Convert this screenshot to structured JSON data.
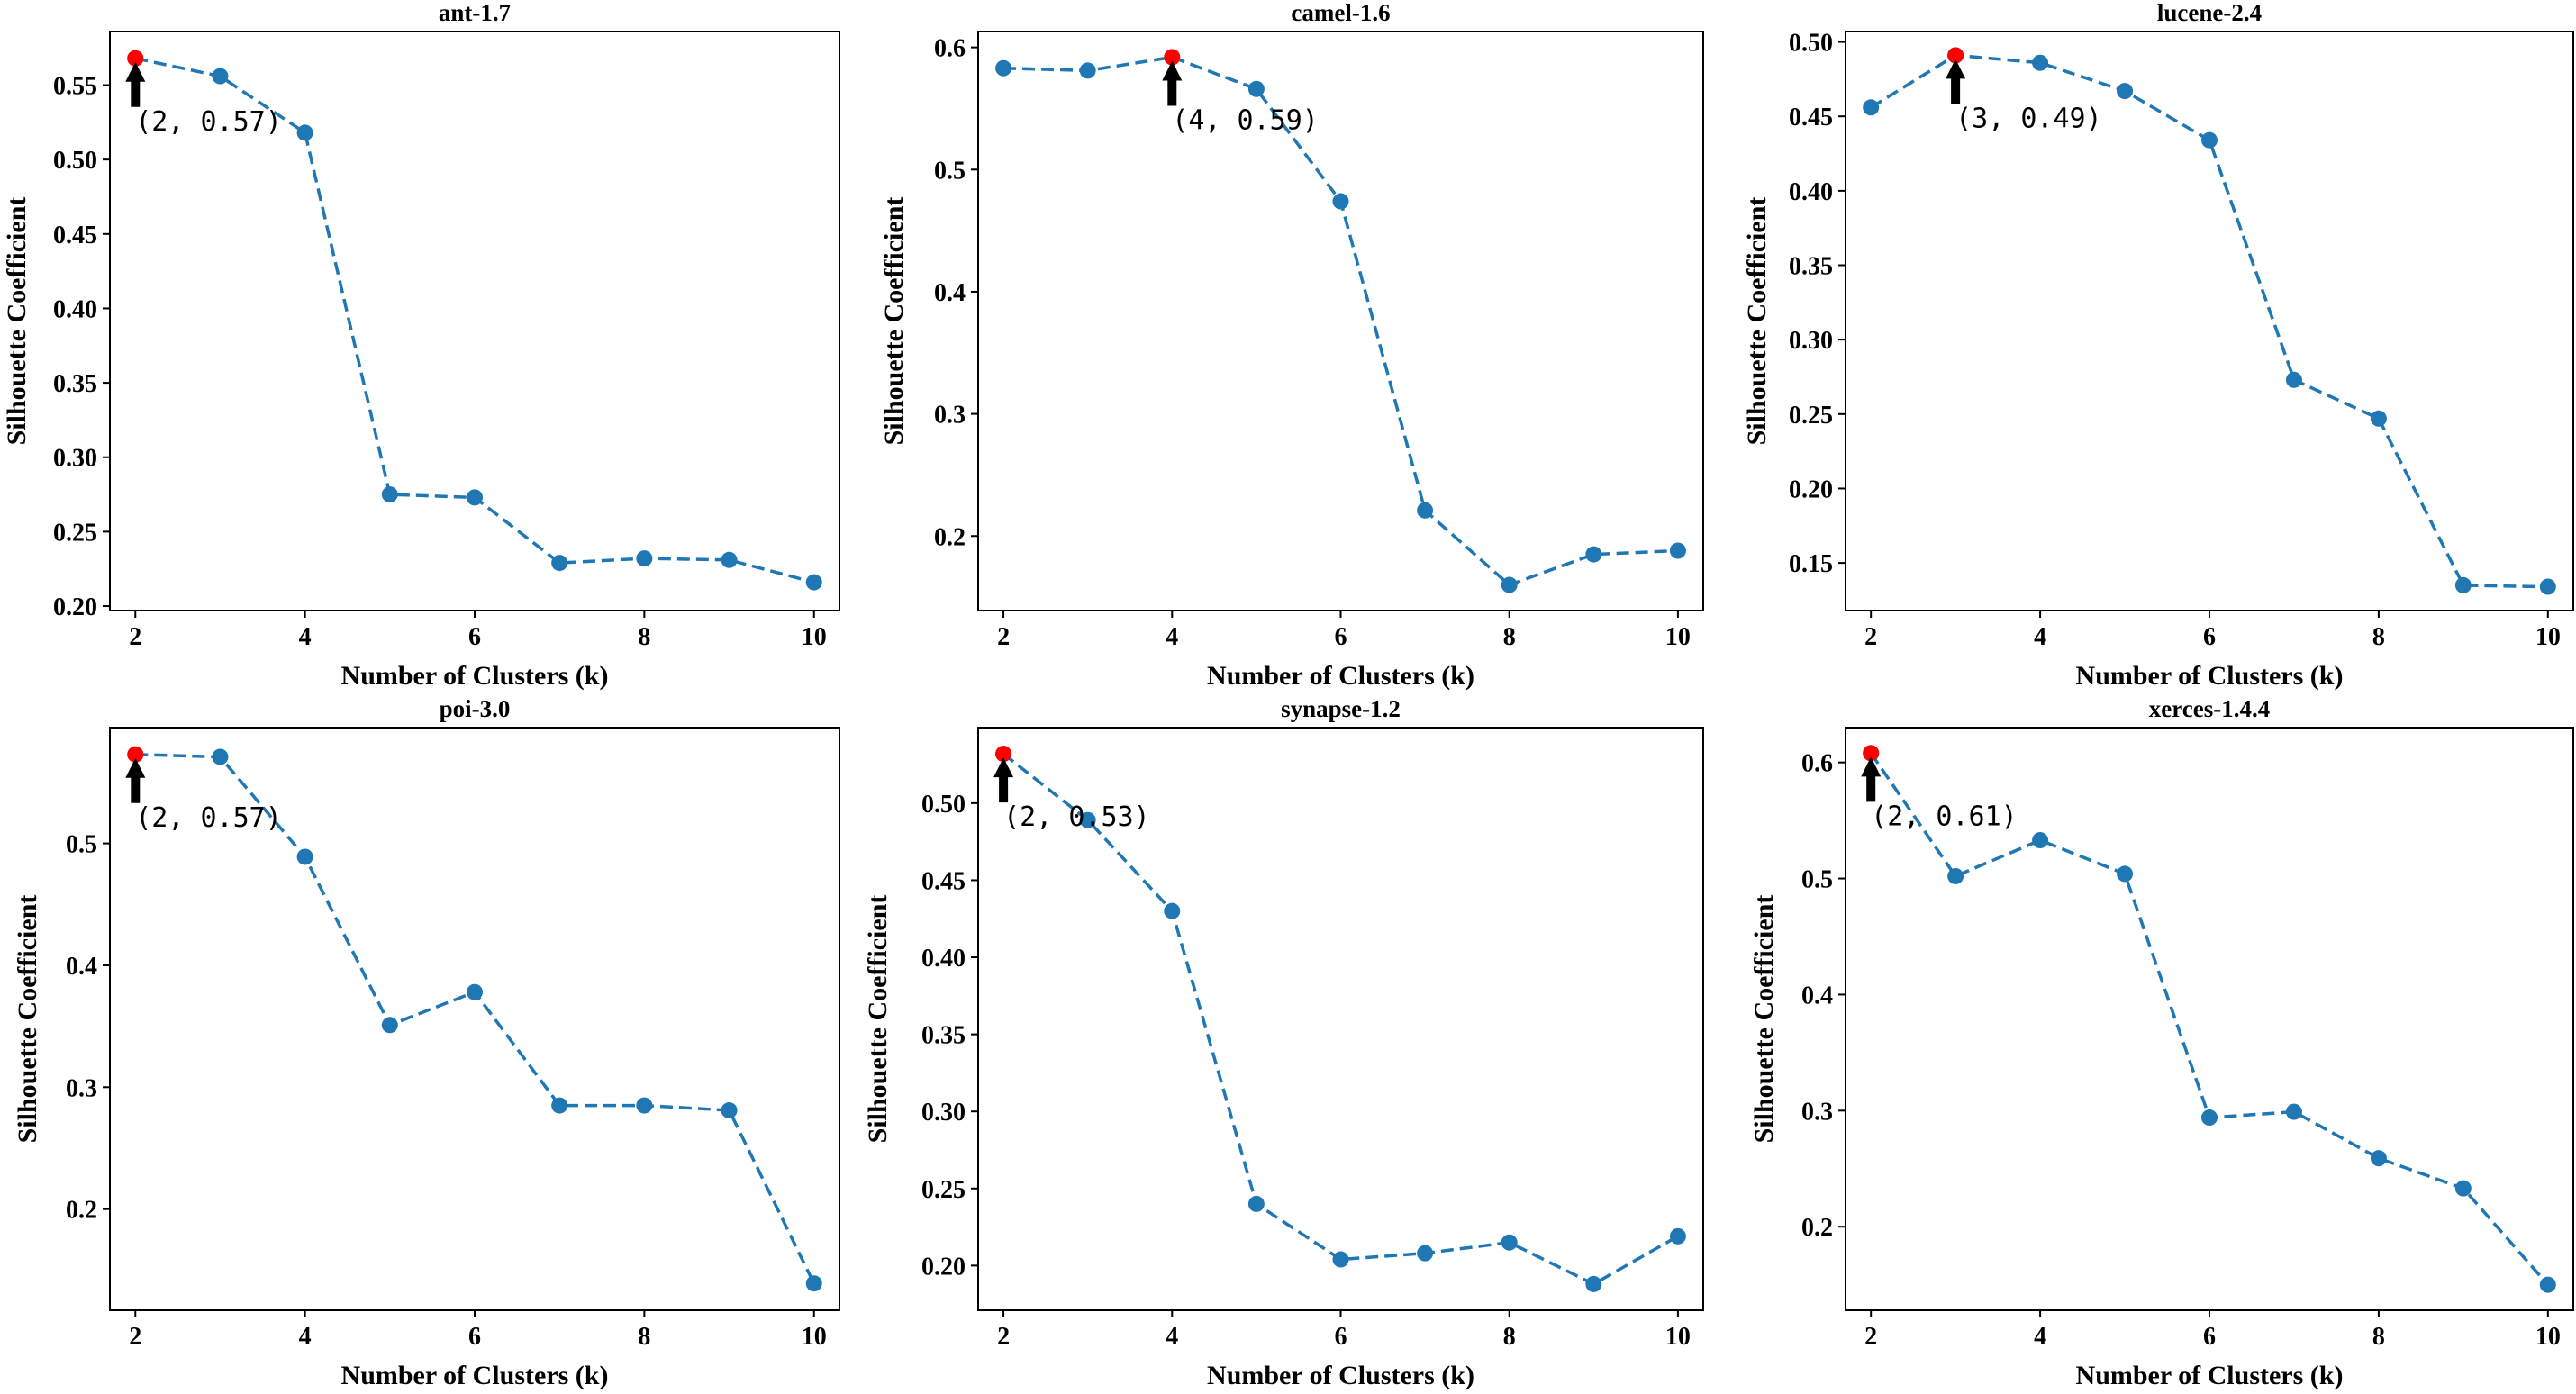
{
  "chart_data": [
    {
      "type": "line",
      "title": "ant-1.7",
      "xlabel": "Number of Clusters (k)",
      "ylabel": "Silhouette Coefficient",
      "x": [
        2,
        3,
        4,
        5,
        6,
        7,
        8,
        9,
        10
      ],
      "values": [
        0.568,
        0.556,
        0.518,
        0.275,
        0.273,
        0.229,
        0.232,
        0.231,
        0.216
      ],
      "xticks": [
        2,
        4,
        6,
        8,
        10
      ],
      "xlim": [
        1.7,
        10.3
      ],
      "yticks": [
        0.2,
        0.25,
        0.3,
        0.35,
        0.4,
        0.45,
        0.5,
        0.55
      ],
      "ytick_labels": [
        "0.20",
        "0.25",
        "0.30",
        "0.35",
        "0.40",
        "0.45",
        "0.50",
        "0.55"
      ],
      "ylim": [
        0.197,
        0.586
      ],
      "best": {
        "x": 2,
        "y": 0.568,
        "label": "(2,  0.57)"
      }
    },
    {
      "type": "line",
      "title": "camel-1.6",
      "xlabel": "Number of Clusters (k)",
      "ylabel": "Silhouette Coefficient",
      "x": [
        2,
        3,
        4,
        5,
        6,
        7,
        8,
        9,
        10
      ],
      "values": [
        0.583,
        0.581,
        0.592,
        0.566,
        0.474,
        0.221,
        0.16,
        0.185,
        0.188
      ],
      "xticks": [
        2,
        4,
        6,
        8,
        10
      ],
      "xlim": [
        1.7,
        10.3
      ],
      "yticks": [
        0.2,
        0.3,
        0.4,
        0.5,
        0.6
      ],
      "ytick_labels": [
        "0.2",
        "0.3",
        "0.4",
        "0.5",
        "0.6"
      ],
      "ylim": [
        0.139,
        0.613
      ],
      "best": {
        "x": 4,
        "y": 0.592,
        "label": "(4,  0.59)"
      }
    },
    {
      "type": "line",
      "title": "lucene-2.4",
      "xlabel": "Number of Clusters (k)",
      "ylabel": "Silhouette Coefficient",
      "x": [
        2,
        3,
        4,
        5,
        6,
        7,
        8,
        9,
        10
      ],
      "values": [
        0.456,
        0.491,
        0.486,
        0.467,
        0.434,
        0.273,
        0.247,
        0.135,
        0.134
      ],
      "xticks": [
        2,
        4,
        6,
        8,
        10
      ],
      "xlim": [
        1.7,
        10.3
      ],
      "yticks": [
        0.15,
        0.2,
        0.25,
        0.3,
        0.35,
        0.4,
        0.45,
        0.5
      ],
      "ytick_labels": [
        "0.15",
        "0.20",
        "0.25",
        "0.30",
        "0.35",
        "0.40",
        "0.45",
        "0.50"
      ],
      "ylim": [
        0.118,
        0.507
      ],
      "best": {
        "x": 3,
        "y": 0.491,
        "label": "(3,  0.49)"
      }
    },
    {
      "type": "line",
      "title": "poi-3.0",
      "xlabel": "Number of Clusters (k)",
      "ylabel": "Silhouette Coefficient",
      "x": [
        2,
        3,
        4,
        5,
        6,
        7,
        8,
        9,
        10
      ],
      "values": [
        0.573,
        0.571,
        0.489,
        0.351,
        0.378,
        0.285,
        0.285,
        0.281,
        0.139
      ],
      "xticks": [
        2,
        4,
        6,
        8,
        10
      ],
      "xlim": [
        1.7,
        10.3
      ],
      "yticks": [
        0.2,
        0.3,
        0.4,
        0.5
      ],
      "ytick_labels": [
        "0.2",
        "0.3",
        "0.4",
        "0.5"
      ],
      "ylim": [
        0.117,
        0.595
      ],
      "best": {
        "x": 2,
        "y": 0.573,
        "label": "(2,  0.57)"
      }
    },
    {
      "type": "line",
      "title": "synapse-1.2",
      "xlabel": "Number of Clusters (k)",
      "ylabel": "Silhouette Coefficient",
      "x": [
        2,
        3,
        4,
        5,
        6,
        7,
        8,
        9,
        10
      ],
      "values": [
        0.532,
        0.489,
        0.43,
        0.24,
        0.204,
        0.208,
        0.215,
        0.188,
        0.219
      ],
      "xticks": [
        2,
        4,
        6,
        8,
        10
      ],
      "xlim": [
        1.7,
        10.3
      ],
      "yticks": [
        0.2,
        0.25,
        0.3,
        0.35,
        0.4,
        0.45,
        0.5
      ],
      "ytick_labels": [
        "0.20",
        "0.25",
        "0.30",
        "0.35",
        "0.40",
        "0.45",
        "0.50"
      ],
      "ylim": [
        0.171,
        0.549
      ],
      "best": {
        "x": 2,
        "y": 0.532,
        "label": "(2,  0.53)"
      }
    },
    {
      "type": "line",
      "title": "xerces-1.4.4",
      "xlabel": "Number of Clusters (k)",
      "ylabel": "Silhouette Coefficient",
      "x": [
        2,
        3,
        4,
        5,
        6,
        7,
        8,
        9,
        10
      ],
      "values": [
        0.608,
        0.502,
        0.533,
        0.504,
        0.294,
        0.299,
        0.259,
        0.233,
        0.15
      ],
      "xticks": [
        2,
        4,
        6,
        8,
        10
      ],
      "xlim": [
        1.7,
        10.3
      ],
      "yticks": [
        0.2,
        0.3,
        0.4,
        0.5,
        0.6
      ],
      "ytick_labels": [
        "0.2",
        "0.3",
        "0.4",
        "0.5",
        "0.6"
      ],
      "ylim": [
        0.128,
        0.63
      ],
      "best": {
        "x": 2,
        "y": 0.608,
        "label": "(2,  0.61)"
      }
    }
  ]
}
